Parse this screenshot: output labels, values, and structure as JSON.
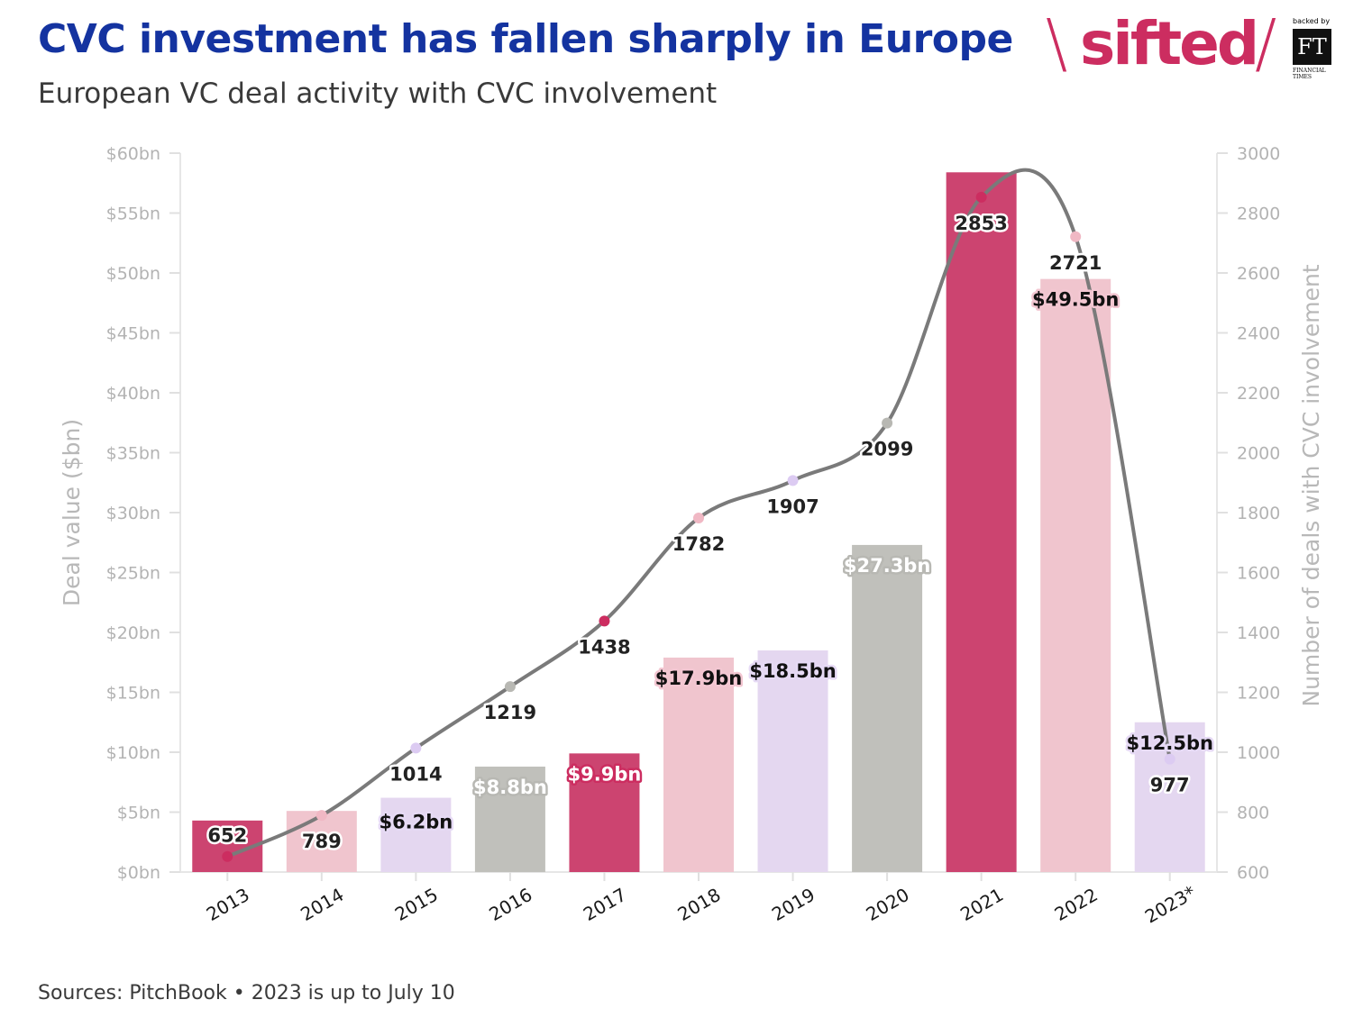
{
  "header": {
    "title": "CVC investment has fallen sharply in Europe",
    "subtitle": "European VC deal activity with CVC involvement"
  },
  "branding": {
    "sifted_word": "sifted",
    "backed_by": "backed by",
    "ft_mark": "FT",
    "ft_name_line1": "FINANCIAL",
    "ft_name_line2": "TIMES",
    "brand_color": "#cc2d60"
  },
  "footer": {
    "source": "Sources: PitchBook • 2023 is up to July 10"
  },
  "chart_data": {
    "type": "bar+line",
    "categories": [
      "2013",
      "2014",
      "2015",
      "2016",
      "2017",
      "2018",
      "2019",
      "2020",
      "2021",
      "2022",
      "2023*"
    ],
    "series": [
      {
        "name": "Deal value ($bn)",
        "type": "bar",
        "axis": "left",
        "values": [
          4.3,
          5.1,
          6.2,
          8.8,
          9.9,
          17.9,
          18.5,
          27.3,
          58.4,
          49.5,
          12.5
        ],
        "labels": [
          "",
          "",
          "$6.2bn",
          "$8.8bn",
          "$9.9bn",
          "$17.9bn",
          "$18.5bn",
          "$27.3bn",
          "",
          "$49.5bn",
          "$12.5bn"
        ]
      },
      {
        "name": "Number of deals with CVC involvement",
        "type": "line",
        "axis": "right",
        "values": [
          652,
          789,
          1014,
          1219,
          1438,
          1782,
          1907,
          2099,
          2853,
          2721,
          977
        ],
        "labels": [
          "652",
          "789",
          "1014",
          "1219",
          "1438",
          "1782",
          "1907",
          "2099",
          "2853",
          "2721",
          "977"
        ]
      }
    ],
    "colors": [
      "#cc4470",
      "#f0c5ce",
      "#e4d7f0",
      "#c0c0bb",
      "#cc4470",
      "#f0c5ce",
      "#e4d7f0",
      "#c0c0bb",
      "#cc4470",
      "#f0c5ce",
      "#e4d7f0"
    ],
    "point_colors": [
      "#cc2d60",
      "#f0b8c4",
      "#dccbf2",
      "#b8b8b3",
      "#cc2d60",
      "#f0b8c4",
      "#dccbf2",
      "#b8b8b3",
      "#cc2d60",
      "#f0b8c4",
      "#dccbf2"
    ],
    "line_color": "#7a7a7a",
    "ylabel": "Deal value ($bn)",
    "y2label": "Number of deals with CVC involvement",
    "ylim": [
      0,
      60
    ],
    "y2lim": [
      600,
      3000
    ],
    "yticks": [
      "$0bn",
      "$5bn",
      "$10bn",
      "$15bn",
      "$20bn",
      "$25bn",
      "$30bn",
      "$35bn",
      "$40bn",
      "$45bn",
      "$50bn",
      "$55bn",
      "$60bn"
    ],
    "y2ticks": [
      "600",
      "800",
      "1000",
      "1200",
      "1400",
      "1600",
      "1800",
      "2000",
      "2200",
      "2400",
      "2600",
      "2800",
      "3000"
    ],
    "grid": false
  }
}
